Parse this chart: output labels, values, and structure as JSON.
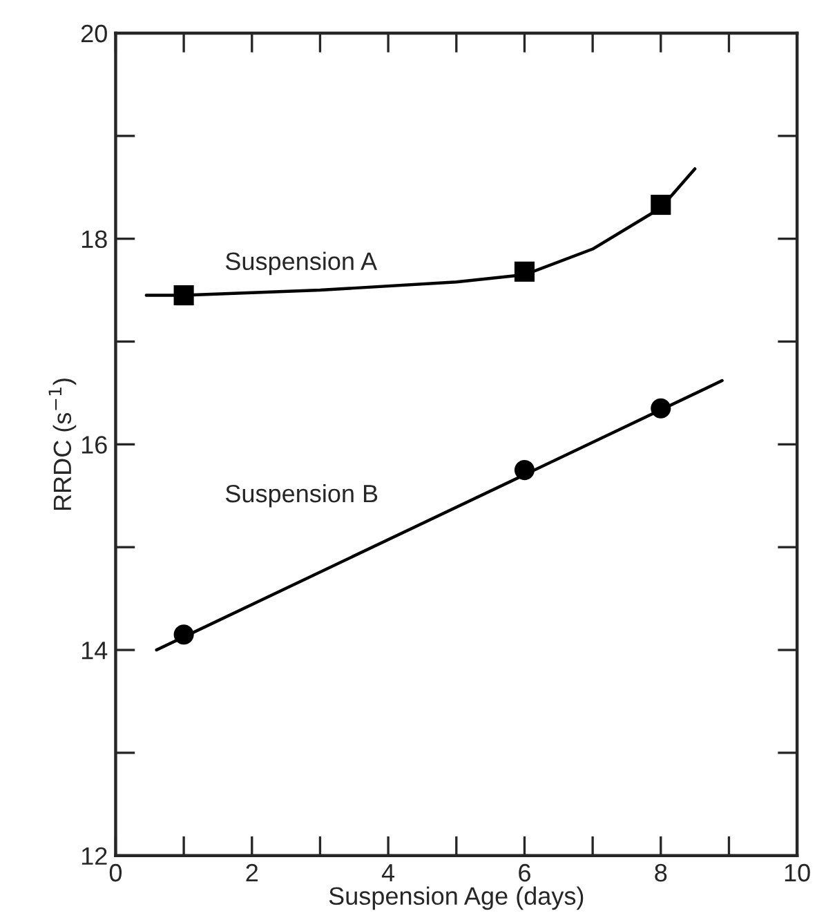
{
  "chart_data": {
    "type": "scatter",
    "xlabel": "Suspension Age (days)",
    "ylabel": "RRDC (s$^{−1}$)",
    "xlim": [
      0,
      10
    ],
    "ylim": [
      12,
      20
    ],
    "xticks": [
      0,
      {
        "value": 1,
        "label": null
      },
      2,
      {
        "value": 3,
        "label": null
      },
      4,
      {
        "value": 5,
        "label": null
      },
      6,
      {
        "value": 7,
        "label": null
      },
      8,
      {
        "value": 9,
        "label": null
      },
      10
    ],
    "yticks": [
      12,
      {
        "value": 13,
        "label": null
      },
      14,
      {
        "value": 15,
        "label": null
      },
      16,
      {
        "value": 17,
        "label": null
      },
      18,
      {
        "value": 19,
        "label": null
      },
      20
    ],
    "grid": false,
    "series": [
      {
        "type": "line",
        "marker": "none",
        "color": "#000000",
        "x": [
          0.45,
          1,
          3,
          5,
          6,
          7,
          8,
          8.5
        ],
        "values": [
          17.45,
          17.45,
          17.5,
          17.58,
          17.65,
          17.9,
          18.3,
          18.68
        ]
      },
      {
        "marker": "square",
        "color": "#000000",
        "x": [
          1,
          6,
          8
        ],
        "values": [
          17.45,
          17.68,
          18.33
        ]
      },
      {
        "type": "line",
        "marker": "none",
        "color": "#000000",
        "x": [
          0.6,
          8.9
        ],
        "values": [
          14.0,
          16.62
        ]
      },
      {
        "marker": "circle",
        "color": "#000000",
        "x": [
          1,
          6,
          8
        ],
        "values": [
          14.15,
          15.75,
          16.35
        ]
      }
    ],
    "annotations": [
      "Suspension A",
      "Suspension B"
    ]
  }
}
